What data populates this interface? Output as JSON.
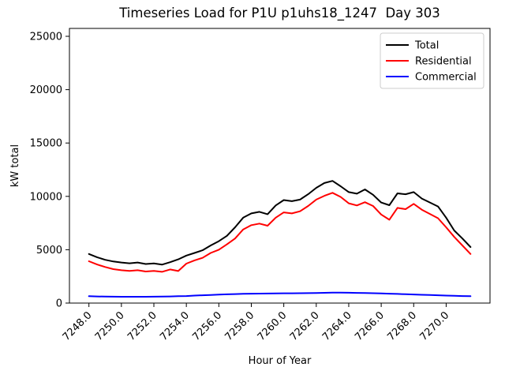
{
  "figure": {
    "title": "Timeseries Load for P1U p1uhs18_1247  Day 303"
  },
  "chart_data": {
    "type": "line",
    "title": "Timeseries Load for P1U p1uhs18_1247  Day 303",
    "xlabel": "Hour of Year",
    "ylabel": "kW total",
    "xlim": [
      7246.8,
      7272.7
    ],
    "ylim": [
      0,
      25740
    ],
    "grid": false,
    "yticks": [
      0,
      5000,
      10000,
      15000,
      20000,
      25000
    ],
    "xticks": [
      7248,
      7250,
      7252,
      7254,
      7256,
      7258,
      7260,
      7262,
      7264,
      7266,
      7268,
      7270
    ],
    "xtick_labels": [
      "7248.0",
      "7250.0",
      "7252.0",
      "7254.0",
      "7256.0",
      "7258.0",
      "7260.0",
      "7262.0",
      "7264.0",
      "7266.0",
      "7268.0",
      "7270.0"
    ],
    "legend": {
      "position": "upper right",
      "entries": [
        {
          "label": "Total",
          "color": "#000000"
        },
        {
          "label": "Residential",
          "color": "#ff0000"
        },
        {
          "label": "Commercial",
          "color": "#0000ff"
        }
      ]
    },
    "x": [
      7248.0,
      7248.5,
      7249.0,
      7249.5,
      7250.0,
      7250.5,
      7251.0,
      7251.5,
      7252.0,
      7252.5,
      7253.0,
      7253.5,
      7254.0,
      7254.5,
      7255.0,
      7255.5,
      7256.0,
      7256.5,
      7257.0,
      7257.5,
      7258.0,
      7258.5,
      7259.0,
      7259.5,
      7260.0,
      7260.5,
      7261.0,
      7261.5,
      7262.0,
      7262.5,
      7263.0,
      7263.5,
      7264.0,
      7264.5,
      7265.0,
      7265.5,
      7266.0,
      7266.5,
      7267.0,
      7267.5,
      7268.0,
      7268.5,
      7269.0,
      7269.5,
      7270.0,
      7270.5,
      7271.0,
      7271.5
    ],
    "series": [
      {
        "name": "Total",
        "color": "#000000",
        "values": [
          4600,
          4300,
          4050,
          3900,
          3800,
          3730,
          3800,
          3660,
          3720,
          3600,
          3830,
          4100,
          4450,
          4700,
          4950,
          5400,
          5800,
          6300,
          7100,
          8000,
          8400,
          8550,
          8330,
          9150,
          9650,
          9550,
          9700,
          10200,
          10800,
          11250,
          11450,
          10950,
          10400,
          10250,
          10650,
          10150,
          9420,
          9170,
          10280,
          10200,
          10400,
          9790,
          9420,
          9050,
          8000,
          6800,
          6050,
          5250
        ]
      },
      {
        "name": "Residential",
        "color": "#ff0000",
        "values": [
          3920,
          3620,
          3380,
          3180,
          3080,
          3010,
          3080,
          2960,
          3010,
          2930,
          3150,
          3000,
          3700,
          4000,
          4240,
          4700,
          5000,
          5500,
          6050,
          6900,
          7300,
          7450,
          7250,
          8000,
          8500,
          8400,
          8600,
          9100,
          9700,
          10050,
          10330,
          9950,
          9350,
          9150,
          9450,
          9100,
          8300,
          7810,
          8920,
          8800,
          9300,
          8750,
          8350,
          7950,
          7100,
          6200,
          5400,
          4600
        ]
      },
      {
        "name": "Commercial",
        "color": "#0000ff",
        "values": [
          640,
          620,
          610,
          600,
          595,
          590,
          595,
          590,
          600,
          610,
          620,
          640,
          660,
          700,
          730,
          760,
          790,
          820,
          845,
          865,
          880,
          890,
          895,
          905,
          915,
          920,
          925,
          935,
          950,
          965,
          975,
          980,
          970,
          955,
          940,
          925,
          905,
          880,
          855,
          830,
          805,
          780,
          755,
          730,
          705,
          680,
          660,
          640
        ]
      }
    ]
  }
}
